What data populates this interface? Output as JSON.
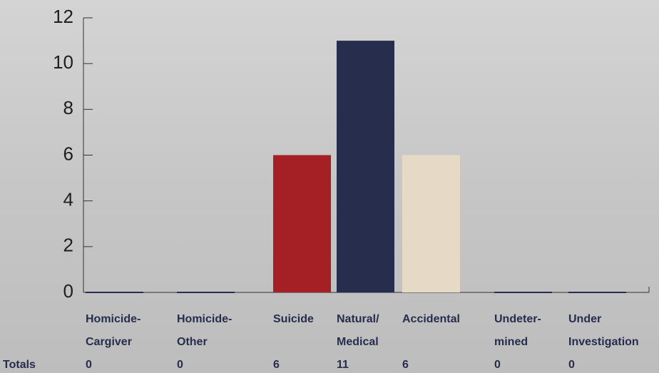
{
  "chart_data": {
    "type": "bar",
    "categories": [
      [
        "Homicide-",
        "Cargiver"
      ],
      [
        "Homicide-",
        "Other"
      ],
      [
        "Suicide"
      ],
      [
        "Natural/",
        "Medical"
      ],
      [
        "Accidental"
      ],
      [
        "Undeter-",
        "mined"
      ],
      [
        "Under",
        "Investigation"
      ]
    ],
    "values": [
      0,
      0,
      6,
      11,
      6,
      0,
      0
    ],
    "colors": [
      "#262d4d",
      "#262d4d",
      "#a52025",
      "#262d4d",
      "#e6d9c6",
      "#262d4d",
      "#262d4d"
    ],
    "totals_label": "Totals",
    "ylim": [
      0,
      12
    ],
    "yticks": [
      0,
      2,
      4,
      6,
      8,
      10,
      12
    ]
  }
}
